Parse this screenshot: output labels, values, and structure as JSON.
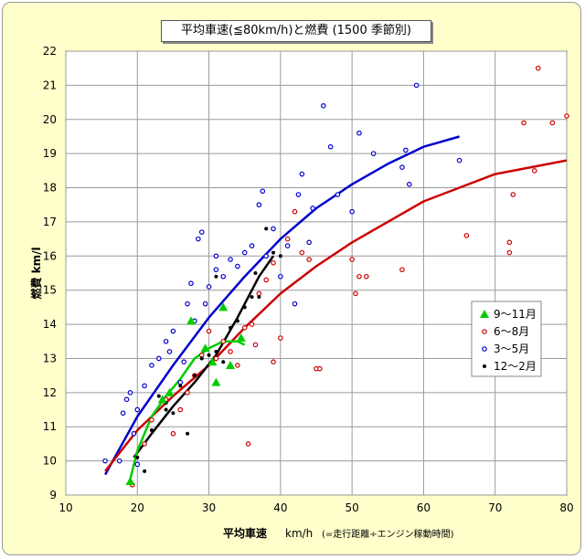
{
  "chart_data": {
    "type": "scatter",
    "title": "平均車速(≦80km/h)と燃費 (1500 季節別)",
    "xlabel": "平均車速",
    "xlabel_unit": "km/h",
    "xlabel_note": "(=走行距離÷エンジン稼動時間)",
    "ylabel": "燃費 km/l",
    "xlim": [
      10,
      80
    ],
    "ylim": [
      9,
      22
    ],
    "x_ticks": [
      10,
      20,
      30,
      40,
      50,
      60,
      70,
      80
    ],
    "y_ticks": [
      9,
      10,
      11,
      12,
      13,
      14,
      15,
      16,
      17,
      18,
      19,
      20,
      21,
      22
    ],
    "grid": true,
    "legend_position": "right",
    "legend": [
      "9～11月",
      "6～8月",
      "3～5月",
      "12～2月"
    ],
    "colors": {
      "autumn": "#00cc00",
      "summer": "#cc0000",
      "spring": "#0000cc",
      "winter": "#000000"
    },
    "series": [
      {
        "name": "9～11月",
        "marker": "triangle",
        "color": "#00cc00",
        "points": [
          [
            19,
            9.4
          ],
          [
            23.5,
            11.8
          ],
          [
            24.5,
            12.0
          ],
          [
            27.5,
            14.1
          ],
          [
            29.5,
            13.3
          ],
          [
            30.5,
            12.9
          ],
          [
            31,
            12.3
          ],
          [
            32,
            14.5
          ],
          [
            33,
            12.8
          ],
          [
            34.5,
            13.6
          ]
        ]
      },
      {
        "name": "6～8月",
        "marker": "circle-open",
        "color": "#cc0000",
        "points": [
          [
            19.3,
            9.3
          ],
          [
            21,
            10.5
          ],
          [
            22,
            11.2
          ],
          [
            24,
            11.8
          ],
          [
            25,
            10.8
          ],
          [
            26,
            11.5
          ],
          [
            27,
            12.0
          ],
          [
            28,
            12.5
          ],
          [
            29,
            13.1
          ],
          [
            30,
            13.8
          ],
          [
            31,
            13.0
          ],
          [
            32,
            13.5
          ],
          [
            33,
            13.2
          ],
          [
            34,
            12.8
          ],
          [
            35,
            13.9
          ],
          [
            35.5,
            10.5
          ],
          [
            36,
            14.0
          ],
          [
            37,
            14.9
          ],
          [
            38,
            15.3
          ],
          [
            39,
            15.8
          ],
          [
            40,
            13.6
          ],
          [
            41,
            16.5
          ],
          [
            42,
            17.3
          ],
          [
            43,
            16.1
          ],
          [
            44,
            15.9
          ],
          [
            45,
            12.7
          ],
          [
            45.5,
            12.7
          ],
          [
            50,
            15.9
          ],
          [
            50.5,
            14.9
          ],
          [
            51,
            15.4
          ],
          [
            52,
            15.4
          ],
          [
            57,
            15.6
          ],
          [
            66,
            16.6
          ],
          [
            72,
            16.1
          ],
          [
            72,
            16.4
          ],
          [
            72.5,
            17.8
          ],
          [
            74,
            19.9
          ],
          [
            75.5,
            18.5
          ],
          [
            76,
            21.5
          ],
          [
            78,
            19.9
          ],
          [
            80,
            20.1
          ],
          [
            36.5,
            13.4
          ],
          [
            39,
            12.9
          ]
        ]
      },
      {
        "name": "3～5月",
        "marker": "circle-open",
        "color": "#0000cc",
        "points": [
          [
            15.5,
            10.0
          ],
          [
            17.5,
            10.0
          ],
          [
            18,
            11.4
          ],
          [
            18.5,
            11.8
          ],
          [
            19,
            12.0
          ],
          [
            19.5,
            10.8
          ],
          [
            20,
            11.5
          ],
          [
            21,
            12.2
          ],
          [
            22,
            12.8
          ],
          [
            23,
            13.0
          ],
          [
            24,
            13.5
          ],
          [
            25,
            13.8
          ],
          [
            26,
            12.3
          ],
          [
            27,
            14.6
          ],
          [
            27.5,
            15.2
          ],
          [
            28,
            14.1
          ],
          [
            28.5,
            16.5
          ],
          [
            29,
            16.7
          ],
          [
            30,
            15.1
          ],
          [
            31,
            15.6
          ],
          [
            31,
            16.0
          ],
          [
            32,
            15.4
          ],
          [
            33,
            15.9
          ],
          [
            34,
            15.7
          ],
          [
            35,
            16.1
          ],
          [
            36,
            16.3
          ],
          [
            37,
            17.5
          ],
          [
            37.5,
            17.9
          ],
          [
            38,
            16.0
          ],
          [
            39,
            16.8
          ],
          [
            40,
            15.4
          ],
          [
            41,
            16.3
          ],
          [
            42,
            14.6
          ],
          [
            42.5,
            17.8
          ],
          [
            43,
            18.4
          ],
          [
            44,
            16.4
          ],
          [
            44.5,
            17.4
          ],
          [
            46,
            20.4
          ],
          [
            47,
            19.2
          ],
          [
            48,
            17.8
          ],
          [
            50,
            17.3
          ],
          [
            51,
            19.6
          ],
          [
            53,
            19.0
          ],
          [
            57,
            18.6
          ],
          [
            57.5,
            19.1
          ],
          [
            58,
            18.1
          ],
          [
            59,
            21.0
          ],
          [
            65,
            18.8
          ],
          [
            29.5,
            14.6
          ],
          [
            26.5,
            12.9
          ],
          [
            24.5,
            13.2
          ],
          [
            20,
            9.9
          ]
        ]
      },
      {
        "name": "12～2月",
        "marker": "dot",
        "color": "#000000",
        "points": [
          [
            20,
            10.1
          ],
          [
            21,
            9.7
          ],
          [
            22,
            10.9
          ],
          [
            23,
            11.9
          ],
          [
            24,
            11.5
          ],
          [
            25,
            11.4
          ],
          [
            26,
            12.2
          ],
          [
            27,
            10.8
          ],
          [
            28,
            12.5
          ],
          [
            29,
            13.0
          ],
          [
            30,
            13.1
          ],
          [
            31,
            15.4
          ],
          [
            32,
            12.9
          ],
          [
            33,
            13.9
          ],
          [
            34,
            14.1
          ],
          [
            35,
            14.5
          ],
          [
            36,
            14.8
          ],
          [
            37,
            14.8
          ],
          [
            38,
            16.8
          ],
          [
            39,
            16.1
          ],
          [
            40,
            16.0
          ],
          [
            36.5,
            15.5
          ],
          [
            24,
            11.7
          ],
          [
            31,
            13.2
          ]
        ]
      }
    ],
    "trend_lines": [
      {
        "series": "3～5月",
        "color": "#0000cc",
        "points": [
          [
            15.5,
            9.6
          ],
          [
            20,
            11.3
          ],
          [
            25,
            12.8
          ],
          [
            30,
            14.2
          ],
          [
            35,
            15.4
          ],
          [
            40,
            16.5
          ],
          [
            45,
            17.4
          ],
          [
            50,
            18.1
          ],
          [
            55,
            18.7
          ],
          [
            60,
            19.2
          ],
          [
            65,
            19.5
          ]
        ]
      },
      {
        "series": "6～8月",
        "color": "#cc0000",
        "points": [
          [
            15.5,
            9.7
          ],
          [
            20,
            10.9
          ],
          [
            25,
            11.9
          ],
          [
            30,
            12.8
          ],
          [
            35,
            13.9
          ],
          [
            40,
            14.9
          ],
          [
            45,
            15.7
          ],
          [
            50,
            16.4
          ],
          [
            55,
            17.0
          ],
          [
            60,
            17.6
          ],
          [
            65,
            18.0
          ],
          [
            70,
            18.4
          ],
          [
            75,
            18.6
          ],
          [
            80,
            18.8
          ]
        ]
      },
      {
        "series": "12～2月",
        "color": "#000000",
        "points": [
          [
            19.5,
            10.1
          ],
          [
            22,
            10.8
          ],
          [
            25,
            11.6
          ],
          [
            28,
            12.3
          ],
          [
            31,
            13.1
          ],
          [
            34,
            14.2
          ],
          [
            37,
            15.4
          ],
          [
            39,
            16.0
          ]
        ]
      },
      {
        "series": "9～11月",
        "color": "#00cc00",
        "points": [
          [
            18.8,
            9.3
          ],
          [
            20,
            10.3
          ],
          [
            22,
            11.3
          ],
          [
            24,
            11.9
          ],
          [
            26,
            12.4
          ],
          [
            28,
            13.0
          ],
          [
            30,
            13.3
          ],
          [
            32,
            13.5
          ],
          [
            34,
            13.5
          ],
          [
            35,
            13.4
          ]
        ]
      }
    ]
  }
}
